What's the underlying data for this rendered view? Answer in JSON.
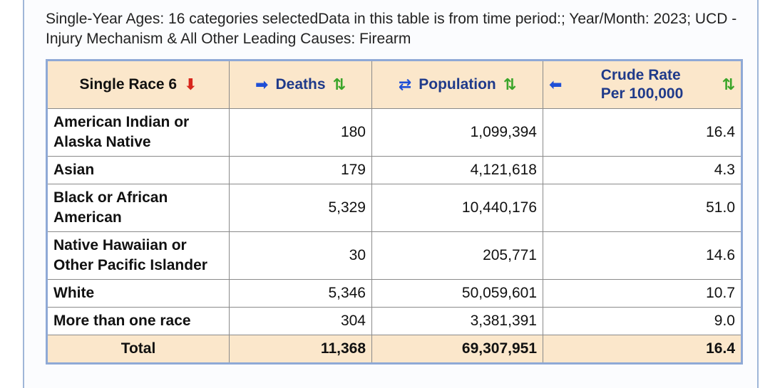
{
  "caption": "Single-Year Ages: 16 categories selectedData in this table is from time period:; Year/Month: 2023; UCD - Injury Mechanism & All Other Leading Causes: Firearm",
  "headers": {
    "race": "Single Race 6",
    "deaths": "Deaths",
    "population": "Population",
    "rate_line1": "Crude Rate",
    "rate_line2": "Per 100,000"
  },
  "icons": {
    "sort_desc": "red-down-arrow",
    "move_right": "blue-right-arrow",
    "swap": "blue-swap-arrows",
    "move_left": "blue-left-arrow",
    "sort": "green-up-down-arrows"
  },
  "rows": [
    {
      "race": "American Indian or Alaska Native",
      "deaths": "180",
      "population": "1,099,394",
      "rate": "16.4"
    },
    {
      "race": "Asian",
      "deaths": "179",
      "population": "4,121,618",
      "rate": "4.3"
    },
    {
      "race": "Black or African American",
      "deaths": "5,329",
      "population": "10,440,176",
      "rate": "51.0"
    },
    {
      "race": "Native Hawaiian or Other Pacific Islander",
      "deaths": "30",
      "population": "205,771",
      "rate": "14.6"
    },
    {
      "race": "White",
      "deaths": "5,346",
      "population": "50,059,601",
      "rate": "10.7"
    },
    {
      "race": "More than one race",
      "deaths": "304",
      "population": "3,381,391",
      "rate": "9.0"
    }
  ],
  "total": {
    "label": "Total",
    "deaths": "11,368",
    "population": "69,307,951",
    "rate": "16.4"
  }
}
